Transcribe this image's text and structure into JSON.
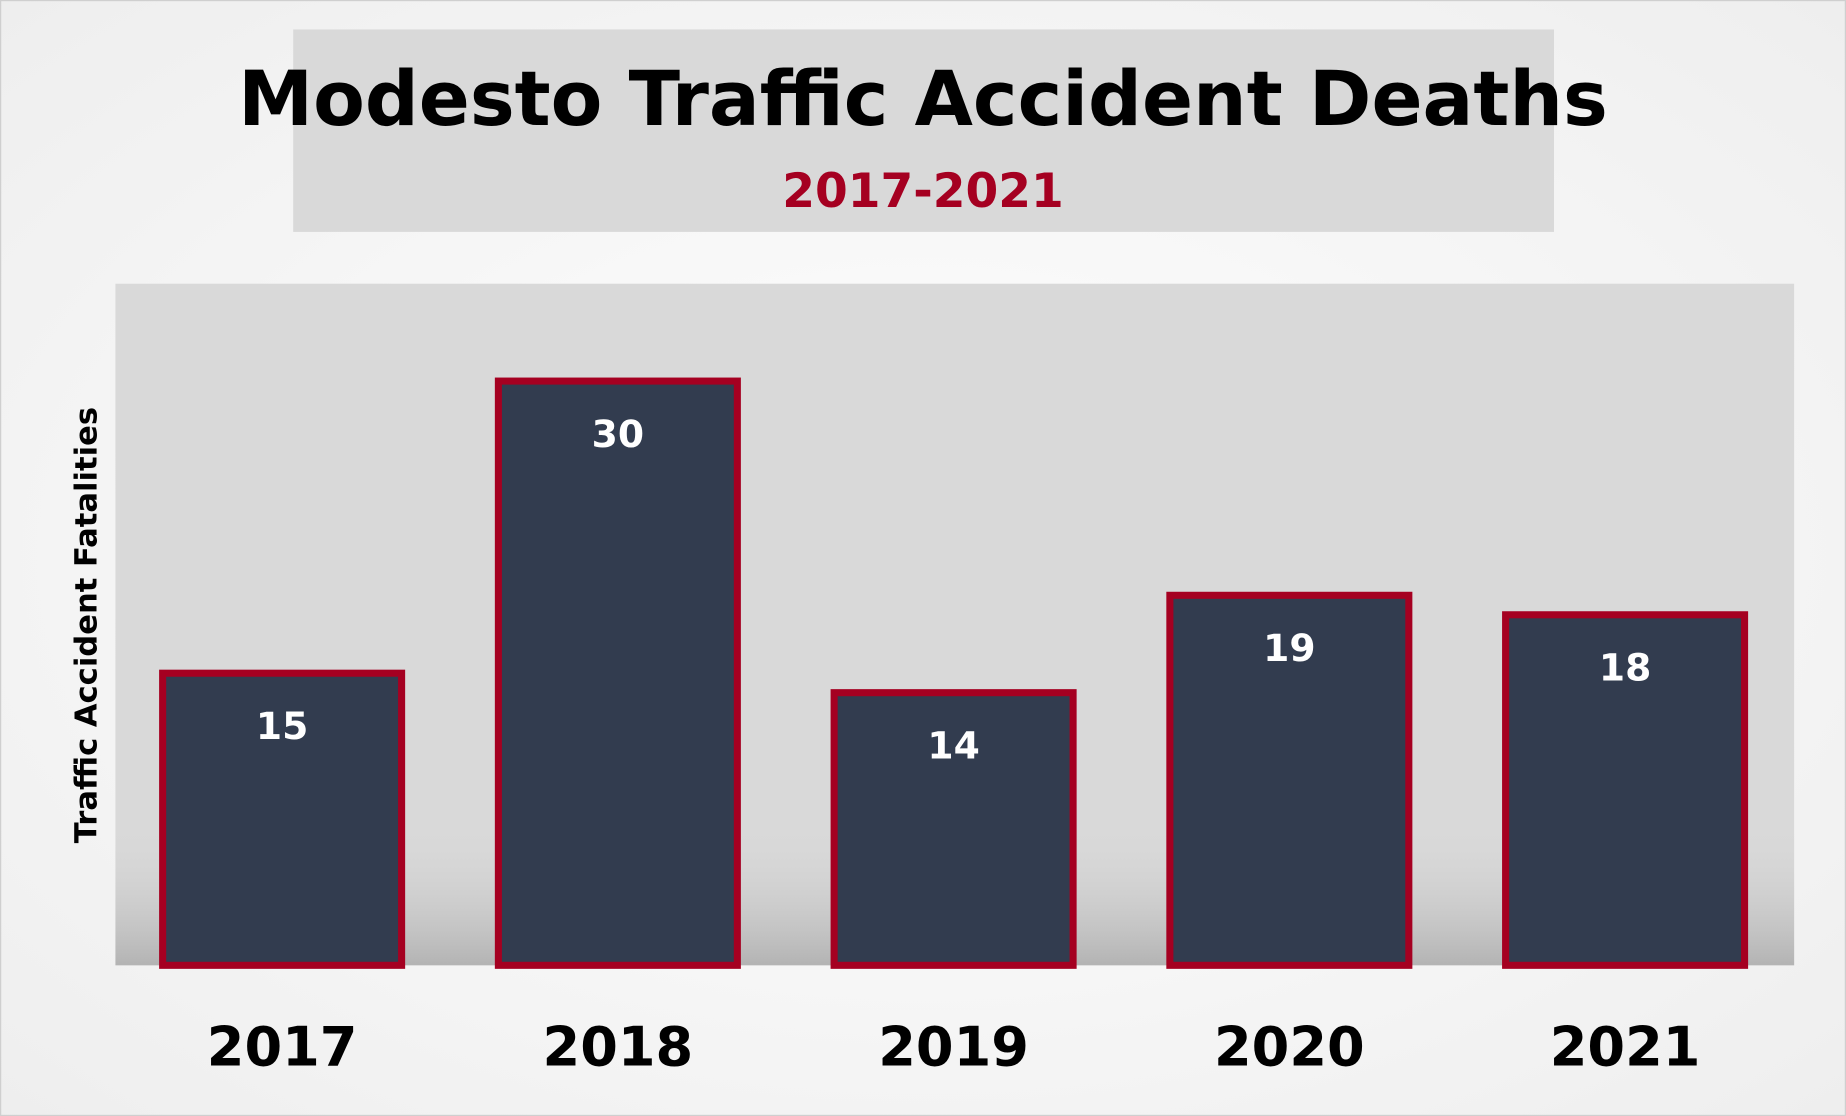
{
  "chart_data": {
    "type": "bar",
    "title": "Modesto Traffic Accident Deaths",
    "subtitle": "2017-2021",
    "xlabel": "",
    "ylabel": "Traffic Accident Fatalities",
    "categories": [
      "2017",
      "2018",
      "2019",
      "2020",
      "2021"
    ],
    "values": [
      15,
      30,
      14,
      19,
      18
    ],
    "data_labels": [
      "15",
      "30",
      "14",
      "19",
      "18"
    ],
    "ylim": [
      0,
      35
    ],
    "grid": false,
    "legend": "none",
    "colors": {
      "bar_fill": "#323C4F",
      "bar_border": "#A50021",
      "subtitle": "#A50021",
      "plot_background": "#D9D9D9",
      "title_background": "#D9D9D9"
    }
  }
}
